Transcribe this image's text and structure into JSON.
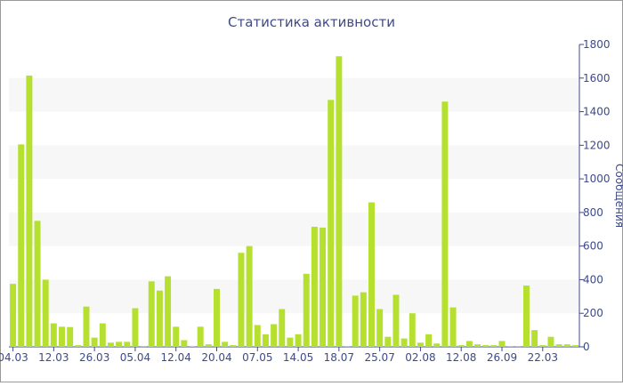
{
  "chart_data": {
    "type": "bar",
    "title": "Статистика активности",
    "y_label": "Сообщения",
    "categories": [
      "04.03",
      null,
      null,
      null,
      null,
      "12.03",
      null,
      null,
      null,
      null,
      "26.03",
      null,
      null,
      null,
      null,
      "05.04",
      null,
      null,
      null,
      null,
      "12.04",
      null,
      null,
      null,
      null,
      "20.04",
      null,
      null,
      null,
      null,
      "07.05",
      null,
      null,
      null,
      null,
      "14.05",
      null,
      null,
      null,
      null,
      "18.07",
      null,
      null,
      null,
      null,
      "25.07",
      null,
      null,
      null,
      null,
      "02.08",
      null,
      null,
      null,
      null,
      "12.08",
      null,
      null,
      null,
      null,
      "26.09",
      null,
      null,
      null,
      null,
      "22.03",
      null,
      null,
      null,
      null
    ],
    "values": [
      375,
      1205,
      1615,
      750,
      400,
      140,
      120,
      118,
      10,
      240,
      55,
      140,
      25,
      30,
      30,
      230,
      5,
      390,
      335,
      420,
      120,
      40,
      5,
      120,
      15,
      345,
      30,
      10,
      560,
      600,
      130,
      75,
      135,
      225,
      55,
      75,
      435,
      715,
      710,
      1470,
      1730,
      5,
      305,
      325,
      860,
      225,
      60,
      310,
      50,
      200,
      25,
      75,
      20,
      1460,
      235,
      10,
      35,
      15,
      10,
      10,
      35,
      5,
      5,
      365,
      100,
      10,
      60,
      15,
      15,
      10
    ],
    "color": "#b5e02f",
    "ylim": [
      0,
      1800
    ],
    "yticks": [
      0,
      200,
      400,
      600,
      800,
      1000,
      1200,
      1400,
      1600,
      1800
    ],
    "y_axis_side": "right",
    "alternate_bands": true
  }
}
